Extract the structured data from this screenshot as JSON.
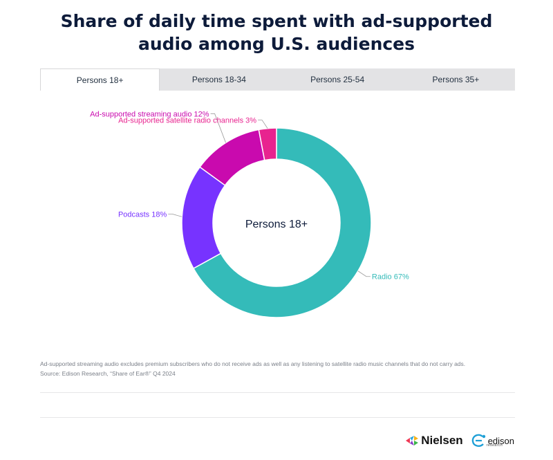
{
  "title": {
    "line1": "Share of daily time spent with ad-supported",
    "line2": "audio among U.S. audiences"
  },
  "tabs": [
    {
      "label": "Persons 18+",
      "active": true
    },
    {
      "label": "Persons 18-34",
      "active": false
    },
    {
      "label": "Persons 25-54",
      "active": false
    },
    {
      "label": "Persons 35+",
      "active": false
    }
  ],
  "chart_data": {
    "type": "pie",
    "style": "donut",
    "center_label": "Persons 18+",
    "unit": "%",
    "slices": [
      {
        "label": "Radio",
        "value": 67,
        "color": "#34bbb9"
      },
      {
        "label": "Podcasts",
        "value": 18,
        "color": "#7733ff"
      },
      {
        "label": "Ad-supported streaming audio",
        "value": 12,
        "color": "#c90aae"
      },
      {
        "label": "Ad-supported satellite radio channels",
        "value": 3,
        "color": "#e8238f"
      }
    ]
  },
  "footnote": {
    "line1": "Ad-supported streaming audio excludes premium subscribers who do not receive ads as well as any listening to satellite radio music channels that do not carry ads.",
    "line2": "Source: Edison Research, “Share of Ear®” Q4 2024"
  },
  "logos": {
    "nielsen": "Nielsen",
    "edison": "edison",
    "edison_sub": "research"
  }
}
